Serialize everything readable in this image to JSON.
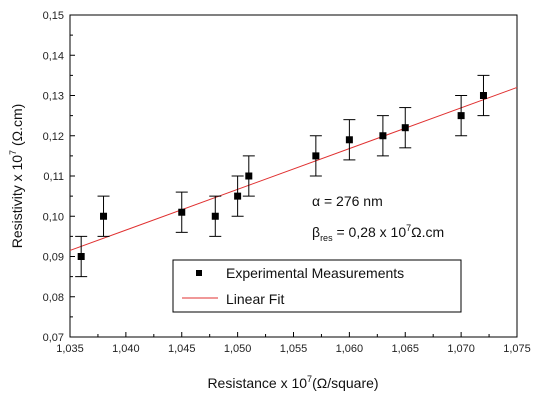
{
  "chart_data": {
    "type": "scatter",
    "x_axis": {
      "base": "Resistance x 10",
      "sup": "7",
      "unit": "(Ω/square)",
      "range": [
        1.035,
        1.075
      ],
      "ticks": [
        "1,035",
        "1,040",
        "1,045",
        "1,050",
        "1,055",
        "1,060",
        "1,065",
        "1,070",
        "1,075"
      ]
    },
    "y_axis": {
      "base": "Resistivity x 10",
      "sup": "7",
      "unit": " (Ω.cm)",
      "range": [
        0.07,
        0.15
      ],
      "ticks": [
        "0,07",
        "0,08",
        "0,09",
        "0,10",
        "0,11",
        "0,12",
        "0,13",
        "0,14",
        "0,15"
      ]
    },
    "grid": false,
    "legend_position": "bottom-right",
    "series": [
      {
        "name": "Experimental Measurements",
        "kind": "points",
        "color": "#000000",
        "error": 0.005,
        "points": [
          [
            1.036,
            0.09
          ],
          [
            1.038,
            0.1
          ],
          [
            1.045,
            0.101
          ],
          [
            1.048,
            0.1
          ],
          [
            1.05,
            0.105
          ],
          [
            1.051,
            0.11
          ],
          [
            1.057,
            0.115
          ],
          [
            1.06,
            0.119
          ],
          [
            1.063,
            0.12
          ],
          [
            1.065,
            0.122
          ],
          [
            1.07,
            0.125
          ],
          [
            1.072,
            0.13
          ]
        ]
      },
      {
        "name": "Linear Fit",
        "kind": "line",
        "color": "#e03030",
        "points": [
          [
            1.035,
            0.0915
          ],
          [
            1.075,
            0.132
          ]
        ]
      }
    ],
    "annotations": {
      "alpha": "α = 276 nm",
      "beta_symbol": "β",
      "beta_sub": "res",
      "beta_value": " = 0,28 x 10",
      "beta_sup": "7",
      "beta_unit": "Ω.cm"
    }
  }
}
